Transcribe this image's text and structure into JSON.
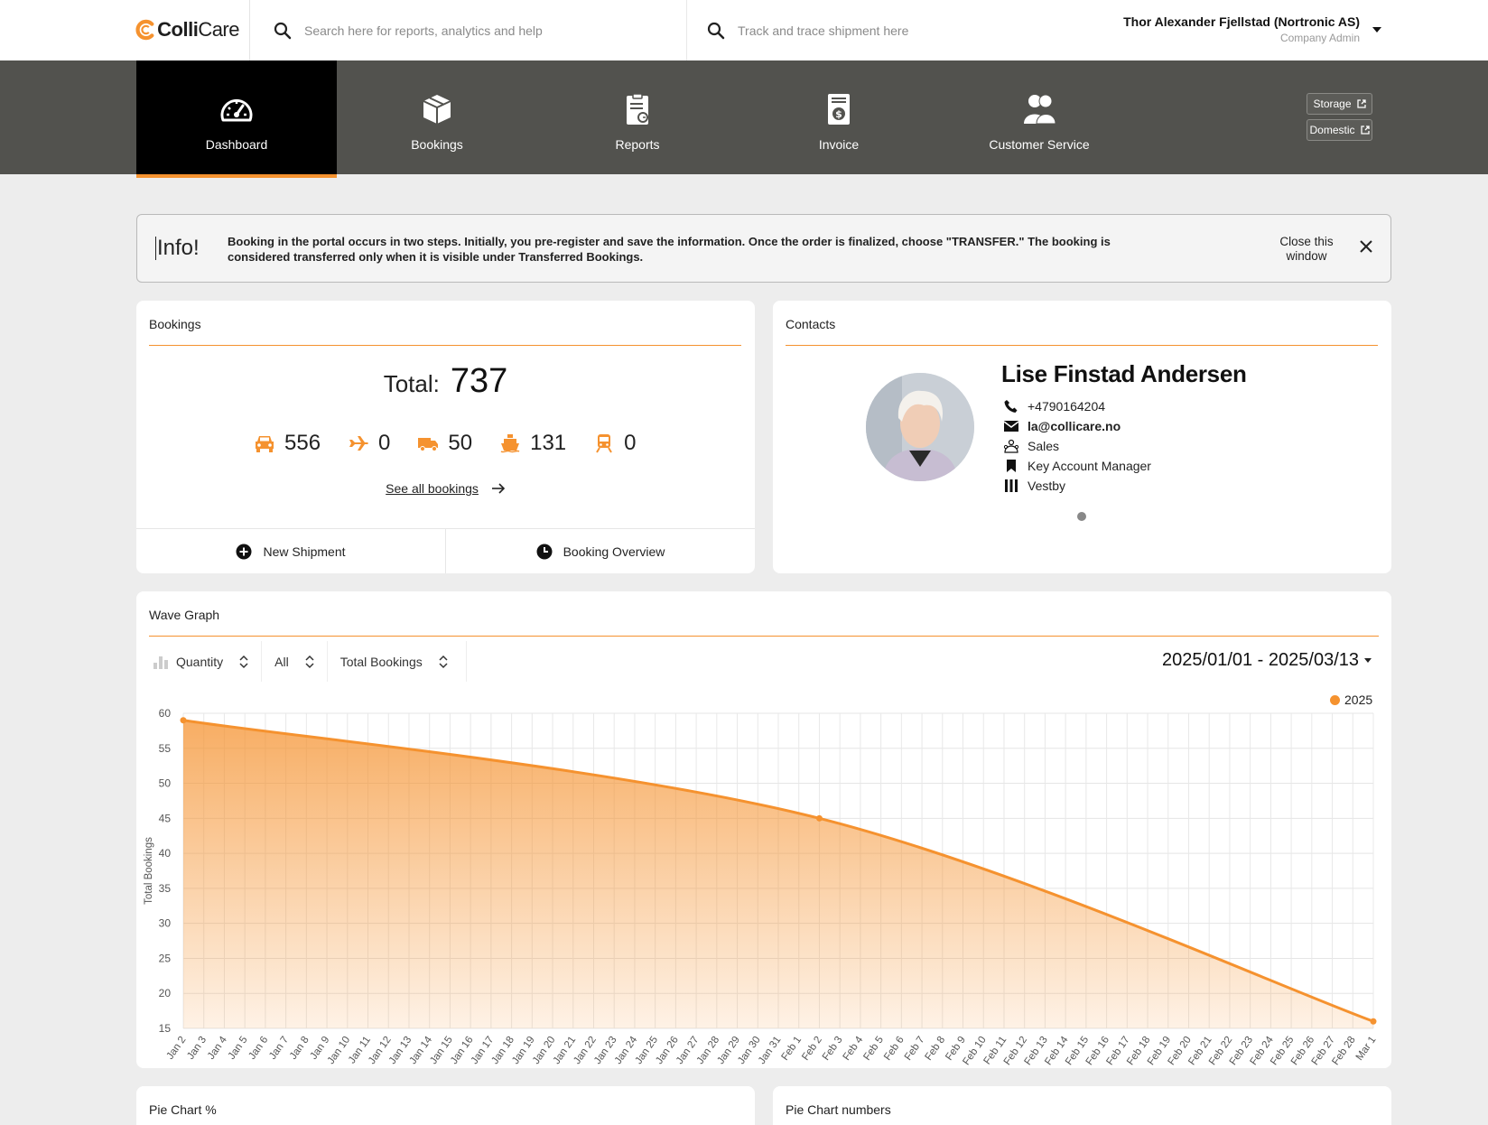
{
  "header": {
    "logo": {
      "colli": "Colli",
      "care": "Care"
    },
    "search_placeholder": "Search here for reports, analytics and help",
    "track_placeholder": "Track and trace shipment here",
    "user_name": "Thor Alexander Fjellstad (Nortronic AS)",
    "user_role": "Company Admin"
  },
  "nav": {
    "items": [
      {
        "label": "Dashboard",
        "icon": "speedometer-icon",
        "active": true
      },
      {
        "label": "Bookings",
        "icon": "box-icon"
      },
      {
        "label": "Reports",
        "icon": "clipboard-report-icon"
      },
      {
        "label": "Invoice",
        "icon": "invoice-dollar-icon"
      },
      {
        "label": "Customer Service",
        "icon": "people-icon"
      }
    ],
    "external": [
      {
        "label": "Storage",
        "icon": "external-link-icon"
      },
      {
        "label": "Domestic",
        "icon": "external-link-icon"
      }
    ]
  },
  "info": {
    "title": "Info!",
    "text": "Booking in the portal occurs in two steps. Initially, you pre-register and save the information. Once the order is finalized, choose \"TRANSFER.\" The booking is considered transferred only when it is visible under Transferred Bookings.",
    "close_text": "Close this window"
  },
  "bookings": {
    "title": "Bookings",
    "total_label": "Total:",
    "total_value": "737",
    "modes": [
      {
        "icon": "car-icon",
        "value": "556"
      },
      {
        "icon": "plane-icon",
        "value": "0"
      },
      {
        "icon": "truck-icon",
        "value": "50"
      },
      {
        "icon": "ship-icon",
        "value": "131"
      },
      {
        "icon": "train-icon",
        "value": "0"
      }
    ],
    "see_all": "See all bookings",
    "new_shipment": "New Shipment",
    "booking_overview": "Booking Overview"
  },
  "contacts": {
    "title": "Contacts",
    "name": "Lise Finstad Andersen",
    "phone": "+4790164204",
    "email": "la@collicare.no",
    "department": "Sales",
    "role": "Key Account Manager",
    "location": "Vestby"
  },
  "wave": {
    "title": "Wave Graph",
    "controls": {
      "metric": "Quantity",
      "filter": "All",
      "measure": "Total Bookings"
    },
    "date_range": "2025/01/01 - 2025/03/13",
    "legend": "2025"
  },
  "pie": {
    "percent_title": "Pie Chart %",
    "numbers_title": "Pie Chart numbers"
  },
  "colors": {
    "accent": "#f5922f",
    "nav_bg": "#52524e",
    "nav_active": "#000000"
  },
  "chart_data": {
    "type": "area",
    "title": "",
    "xlabel": "",
    "ylabel": "Total Bookings",
    "ylim": [
      15,
      60
    ],
    "yticks": [
      15,
      20,
      25,
      30,
      35,
      40,
      45,
      50,
      55,
      60
    ],
    "grid": true,
    "legend_position": "top-right",
    "x": [
      "Jan 2",
      "Jan 3",
      "Jan 4",
      "Jan 5",
      "Jan 6",
      "Jan 7",
      "Jan 8",
      "Jan 9",
      "Jan 10",
      "Jan 11",
      "Jan 12",
      "Jan 13",
      "Jan 14",
      "Jan 15",
      "Jan 16",
      "Jan 17",
      "Jan 18",
      "Jan 19",
      "Jan 20",
      "Jan 21",
      "Jan 22",
      "Jan 23",
      "Jan 24",
      "Jan 25",
      "Jan 26",
      "Jan 27",
      "Jan 28",
      "Jan 29",
      "Jan 30",
      "Jan 31",
      "Feb 1",
      "Feb 2",
      "Feb 3",
      "Feb 4",
      "Feb 5",
      "Feb 6",
      "Feb 7",
      "Feb 8",
      "Feb 9",
      "Feb 10",
      "Feb 11",
      "Feb 12",
      "Feb 13",
      "Feb 14",
      "Feb 15",
      "Feb 16",
      "Feb 17",
      "Feb 18",
      "Feb 19",
      "Feb 20",
      "Feb 21",
      "Feb 22",
      "Feb 23",
      "Feb 24",
      "Feb 25",
      "Feb 26",
      "Feb 27",
      "Feb 28",
      "Mar 1"
    ],
    "series": [
      {
        "name": "2025",
        "points": [
          {
            "x": "Jan 2",
            "y": 59
          },
          {
            "x": "Feb 2",
            "y": 45
          },
          {
            "x": "Mar 1",
            "y": 16
          }
        ]
      }
    ]
  }
}
